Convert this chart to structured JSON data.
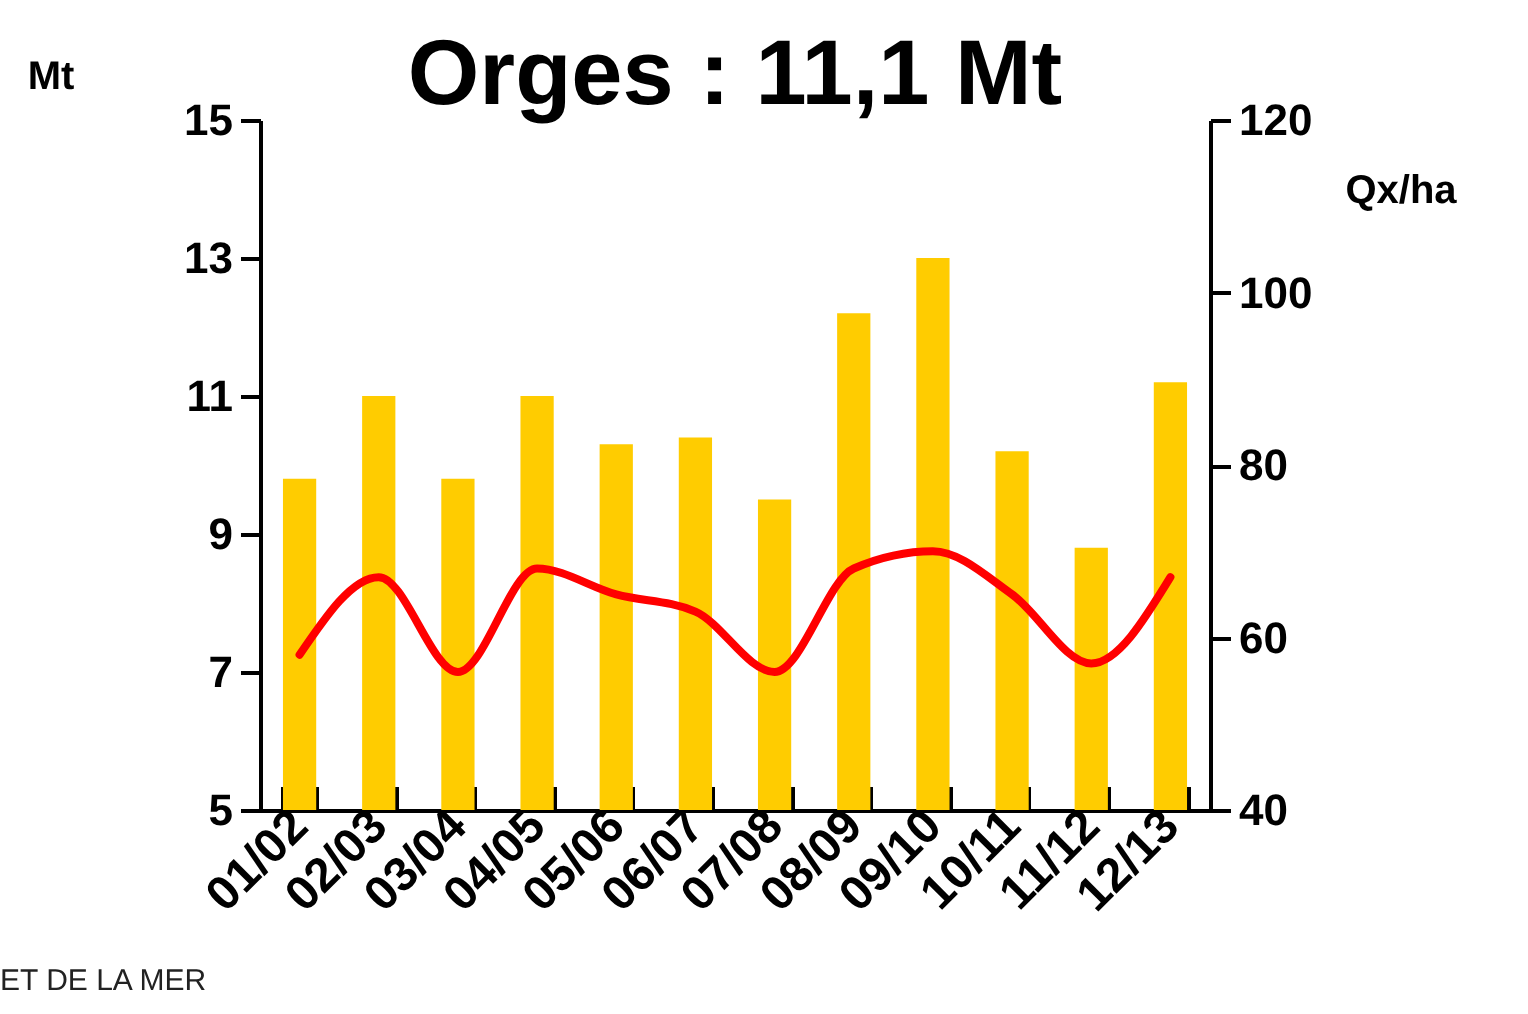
{
  "chart_data": {
    "type": "bar",
    "title": "Orges : 11,1 Mt",
    "ylabel": "Mt",
    "y2label": "Qx/ha",
    "categories": [
      "01/02",
      "02/03",
      "03/04",
      "04/05",
      "05/06",
      "06/07",
      "07/08",
      "08/09",
      "09/10",
      "10/11",
      "11/12",
      "12/13"
    ],
    "series": [
      {
        "color": "#ffcc00",
        "values": [
          9.8,
          11.0,
          9.8,
          11.0,
          10.3,
          10.4,
          9.5,
          12.2,
          13.0,
          10.2,
          8.8,
          11.2
        ]
      },
      {
        "type": "line",
        "axis": "y2",
        "color": "#ff0000",
        "values": [
          58,
          67,
          56,
          68,
          65,
          63,
          56,
          68,
          70,
          65,
          57,
          67
        ]
      }
    ],
    "ylim": [
      5,
      15
    ],
    "yticks": [
      5,
      7,
      9,
      11,
      13,
      15
    ],
    "y2lim": [
      40,
      120
    ],
    "y2ticks": [
      40,
      60,
      80,
      100,
      120
    ],
    "grid": false,
    "annotations": [
      "ET DE LA MER"
    ]
  }
}
